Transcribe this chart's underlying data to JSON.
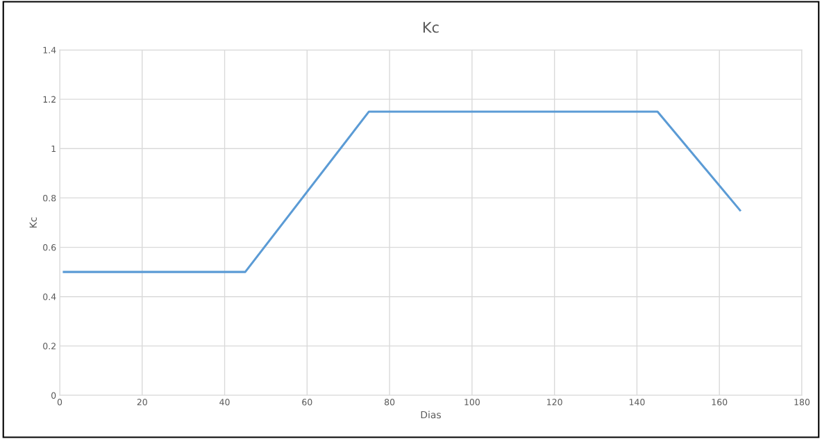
{
  "chart_data": {
    "type": "line",
    "title": "Kc",
    "xlabel": "Dias",
    "ylabel": "Kc",
    "x": [
      1,
      45,
      75,
      145,
      165
    ],
    "series": [
      {
        "color": "#5b9bd5",
        "values": [
          0.5,
          0.5,
          1.15,
          1.15,
          0.75
        ]
      }
    ],
    "xlim": [
      0,
      180
    ],
    "xticks": [
      0,
      20,
      40,
      60,
      80,
      100,
      120,
      140,
      160,
      180
    ],
    "ylim": [
      0,
      1.4
    ],
    "yticks": [
      0,
      0.2,
      0.4,
      0.6,
      0.8,
      1,
      1.2,
      1.4
    ],
    "grid": true,
    "marker": "none",
    "line_style": "solid"
  }
}
